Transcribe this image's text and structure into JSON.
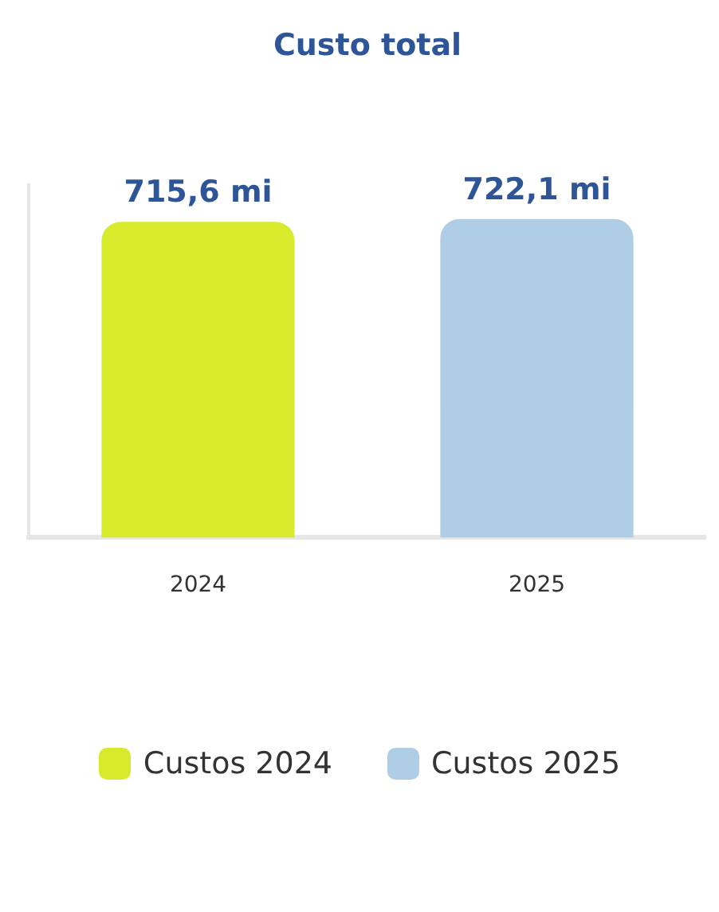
{
  "chart_data": {
    "type": "bar",
    "title": "Custo total",
    "categories": [
      "2024",
      "2025"
    ],
    "series": [
      {
        "name": "Custos 2024",
        "color": "#d7ea2c",
        "values": [
          715.6,
          null
        ],
        "value_labels": [
          "715,6 mi",
          null
        ]
      },
      {
        "name": "Custos 2025",
        "color": "#b0cde6",
        "values": [
          null,
          722.1
        ],
        "value_labels": [
          null,
          "722,1 mi"
        ]
      }
    ],
    "stacked": true,
    "grid": false,
    "legend": "bottom"
  }
}
